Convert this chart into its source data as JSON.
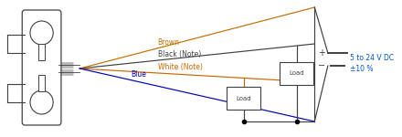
{
  "bg_color": "#ffffff",
  "line_color": "#404040",
  "brown_color": "#c07000",
  "blue_color": "#0000bb",
  "white_note_color": "#cc6600",
  "dc_text_color": "#0055cc",
  "wire_labels": [
    "Brown",
    "Black (Note)",
    "White (Note)",
    "Blue"
  ],
  "wire_label_colors": [
    "#c07000",
    "#404040",
    "#cc6600",
    "#0000bb"
  ],
  "dc_label": "5 to 24 V DC\n±10 %",
  "node_color": "#000000"
}
